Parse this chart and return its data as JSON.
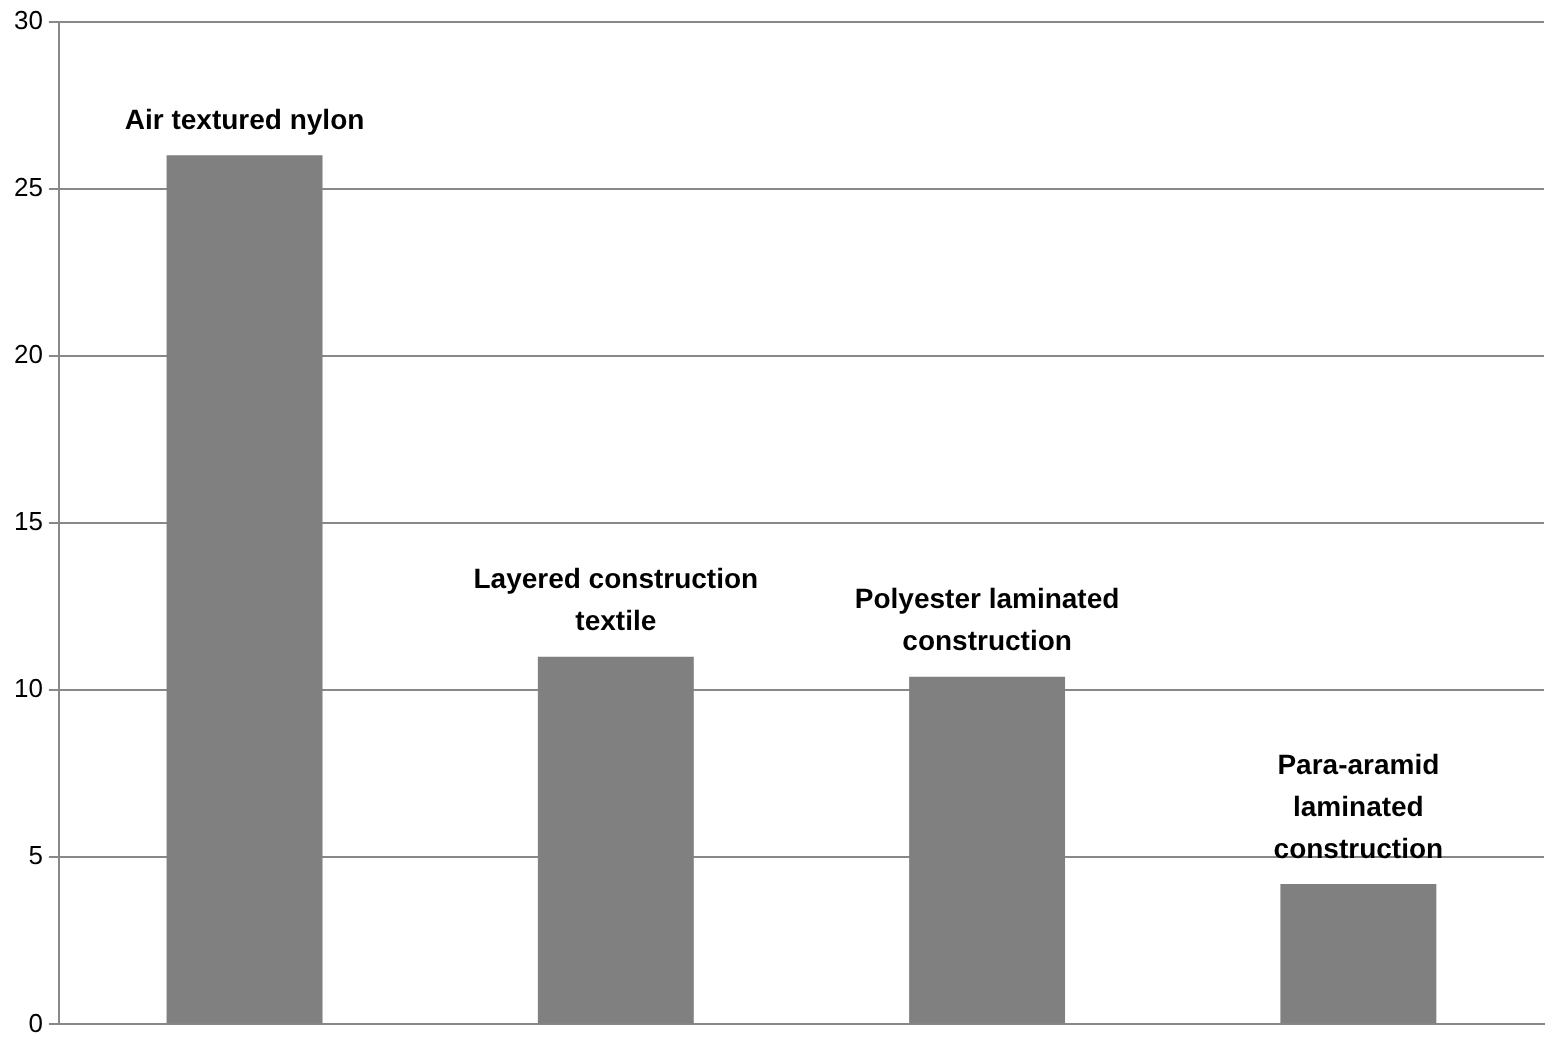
{
  "chart_data": {
    "type": "bar",
    "categories": [
      "Air textured nylon",
      "Layered construction textile",
      "Polyester laminated construction",
      "Para-aramid laminated construction"
    ],
    "values": [
      26,
      11,
      10.4,
      4.2
    ],
    "color": "#808080",
    "ylim": [
      0,
      30
    ],
    "yticks": [
      0,
      5,
      10,
      15,
      20,
      25,
      30
    ],
    "grid": "y"
  }
}
